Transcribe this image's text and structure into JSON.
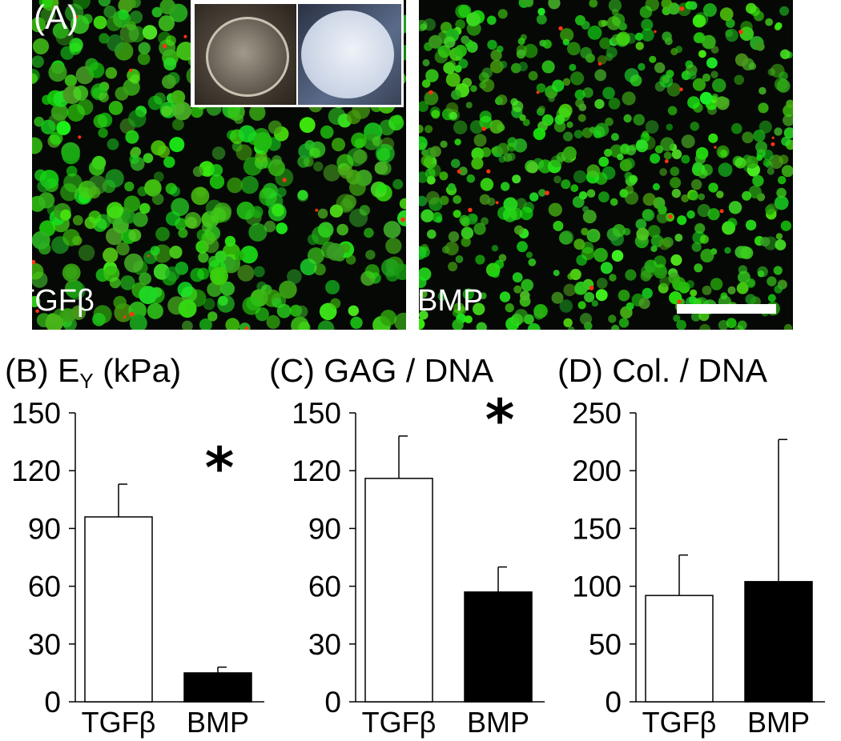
{
  "panel_a": {
    "letter": "(A)",
    "left_label": "TGFβ",
    "right_label": "BMP"
  },
  "colors": {
    "live_stain": "#33dd22",
    "dead_stain": "#ff3311",
    "bar_tgfb": "#ffffff",
    "bar_bmp": "#000000"
  },
  "chart_data": [
    {
      "type": "bar",
      "title_prefix": "(B) E",
      "title_sub": "Y",
      "title_suffix": " (kPa)",
      "categories": [
        "TGFβ",
        "BMP"
      ],
      "values": [
        96,
        15
      ],
      "errors": [
        17,
        3
      ],
      "ylim": [
        0,
        150
      ],
      "yticks": [
        0,
        30,
        60,
        90,
        120,
        150
      ],
      "significance": "*",
      "significance_at": 1,
      "grid": false
    },
    {
      "type": "bar",
      "title_prefix": "(C) GAG / DNA",
      "title_sub": "",
      "title_suffix": "",
      "categories": [
        "TGFβ",
        "BMP"
      ],
      "values": [
        116,
        57
      ],
      "errors": [
        22,
        13
      ],
      "ylim": [
        0,
        150
      ],
      "yticks": [
        0,
        30,
        60,
        90,
        120,
        150
      ],
      "significance": "*",
      "significance_at": 1,
      "grid": false
    },
    {
      "type": "bar",
      "title_prefix": "(D) Col. / DNA",
      "title_sub": "",
      "title_suffix": "",
      "categories": [
        "TGFβ",
        "BMP"
      ],
      "values": [
        92,
        104
      ],
      "errors": [
        35,
        123
      ],
      "ylim": [
        0,
        250
      ],
      "yticks": [
        0,
        50,
        100,
        150,
        200,
        250
      ],
      "significance": "",
      "significance_at": 1,
      "grid": false
    }
  ]
}
